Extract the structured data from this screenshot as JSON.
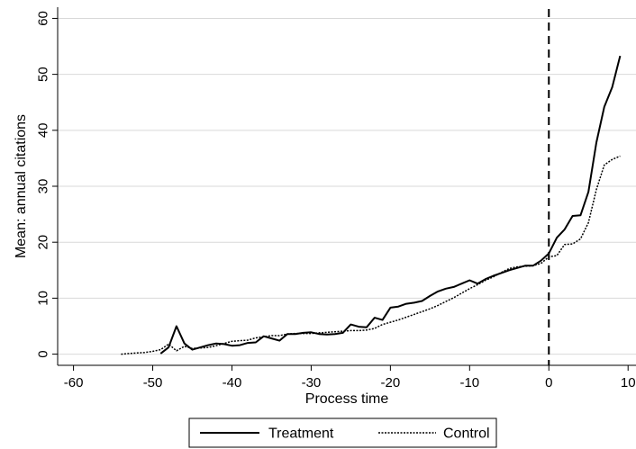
{
  "chart_data": {
    "type": "line",
    "title": "",
    "xlabel": "Process time",
    "ylabel": "Mean: annual citations",
    "xlim": [
      -62,
      11
    ],
    "ylim": [
      -2,
      62
    ],
    "xticks": [
      -60,
      -50,
      -40,
      -30,
      -20,
      -10,
      0,
      10
    ],
    "yticks": [
      0,
      10,
      20,
      30,
      40,
      50,
      60
    ],
    "grid": "horizontal",
    "legend_position": "bottom-center",
    "reference_line": {
      "x": 0,
      "style": "dashed"
    },
    "series": [
      {
        "name": "Treatment",
        "style": "solid",
        "color": "#000000",
        "x": [
          -49,
          -48,
          -47,
          -46,
          -45,
          -44,
          -43,
          -42,
          -41,
          -40,
          -39,
          -38,
          -37,
          -36,
          -35,
          -34,
          -33,
          -32,
          -31,
          -30,
          -29,
          -28,
          -27,
          -26,
          -25,
          -24,
          -23,
          -22,
          -21,
          -20,
          -19,
          -18,
          -17,
          -16,
          -15,
          -14,
          -13,
          -12,
          -11,
          -10,
          -9,
          -8,
          -7,
          -6,
          -5,
          -4,
          -3,
          -2,
          -1,
          0,
          1,
          2,
          3,
          4,
          5,
          6,
          7,
          8,
          9
        ],
        "y": [
          0.1,
          1.2,
          5.0,
          1.9,
          0.8,
          1.2,
          1.6,
          1.9,
          1.8,
          1.5,
          1.6,
          2.0,
          2.1,
          3.2,
          2.8,
          2.4,
          3.6,
          3.6,
          3.8,
          3.9,
          3.6,
          3.5,
          3.6,
          3.8,
          5.3,
          4.9,
          4.8,
          6.5,
          6.1,
          8.3,
          8.5,
          9.0,
          9.2,
          9.5,
          10.4,
          11.2,
          11.7,
          12.0,
          12.6,
          13.2,
          12.6,
          13.4,
          14.0,
          14.5,
          15.0,
          15.4,
          15.8,
          15.8,
          16.7,
          18.0,
          20.8,
          22.3,
          24.7,
          24.8,
          29.0,
          37.8,
          44.2,
          47.7,
          53.3
        ]
      },
      {
        "name": "Control",
        "style": "dotted",
        "color": "#000000",
        "x": [
          -54,
          -53,
          -52,
          -51,
          -50,
          -49,
          -48,
          -47,
          -46,
          -45,
          -44,
          -43,
          -42,
          -41,
          -40,
          -39,
          -38,
          -37,
          -36,
          -35,
          -34,
          -33,
          -32,
          -31,
          -30,
          -29,
          -28,
          -27,
          -26,
          -25,
          -24,
          -23,
          -22,
          -21,
          -20,
          -19,
          -18,
          -17,
          -16,
          -15,
          -14,
          -13,
          -12,
          -11,
          -10,
          -9,
          -8,
          -7,
          -6,
          -5,
          -4,
          -3,
          -2,
          -1,
          0,
          1,
          2,
          3,
          4,
          5,
          6,
          7,
          8,
          9
        ],
        "y": [
          0.0,
          0.1,
          0.2,
          0.3,
          0.5,
          0.8,
          1.8,
          0.6,
          1.4,
          1.0,
          1.1,
          1.2,
          1.5,
          1.9,
          2.3,
          2.4,
          2.5,
          2.9,
          3.1,
          3.3,
          3.3,
          3.6,
          3.7,
          3.7,
          3.7,
          3.8,
          3.9,
          4.0,
          4.1,
          4.2,
          4.2,
          4.3,
          4.6,
          5.3,
          5.7,
          6.1,
          6.6,
          7.1,
          7.6,
          8.1,
          8.7,
          9.4,
          10.1,
          10.9,
          11.7,
          12.4,
          13.2,
          13.8,
          14.6,
          15.3,
          15.6,
          15.7,
          15.8,
          16.2,
          17.4,
          17.6,
          19.6,
          19.7,
          20.6,
          23.5,
          29.4,
          33.8,
          34.8,
          35.4
        ]
      }
    ]
  }
}
